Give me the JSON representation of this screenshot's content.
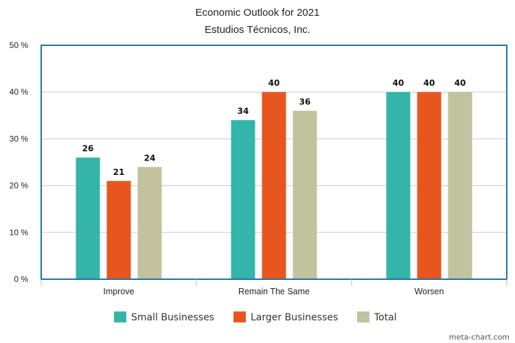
{
  "chart_data": {
    "type": "bar",
    "title": "Economic Outlook for 2021",
    "subtitle": "Estudios Técnicos, Inc.",
    "categories": [
      "Improve",
      "Remain The Same",
      "Worsen"
    ],
    "series": [
      {
        "name": "Small Businesses",
        "color": "#35b5aa",
        "values": [
          26,
          34,
          40
        ],
        "labels": [
          "26",
          "34",
          "40"
        ]
      },
      {
        "name": "Larger Businesses",
        "color": "#e8561f",
        "values": [
          21,
          40,
          40
        ],
        "labels": [
          "21",
          "40",
          "40"
        ]
      },
      {
        "name": "Total",
        "color": "#c2c29e",
        "values": [
          24,
          36,
          40
        ],
        "labels": [
          "24",
          "36",
          "40"
        ]
      }
    ],
    "ylim": [
      0,
      50
    ],
    "yticks": [
      0,
      10,
      20,
      30,
      40,
      50
    ],
    "ytick_labels": [
      "0 %",
      "10 %",
      "20 %",
      "30 %",
      "40 %",
      "50 %"
    ],
    "grid": true,
    "legend_position": "bottom",
    "frame_color": "#1f6fa8"
  },
  "credit": "meta-chart.com"
}
